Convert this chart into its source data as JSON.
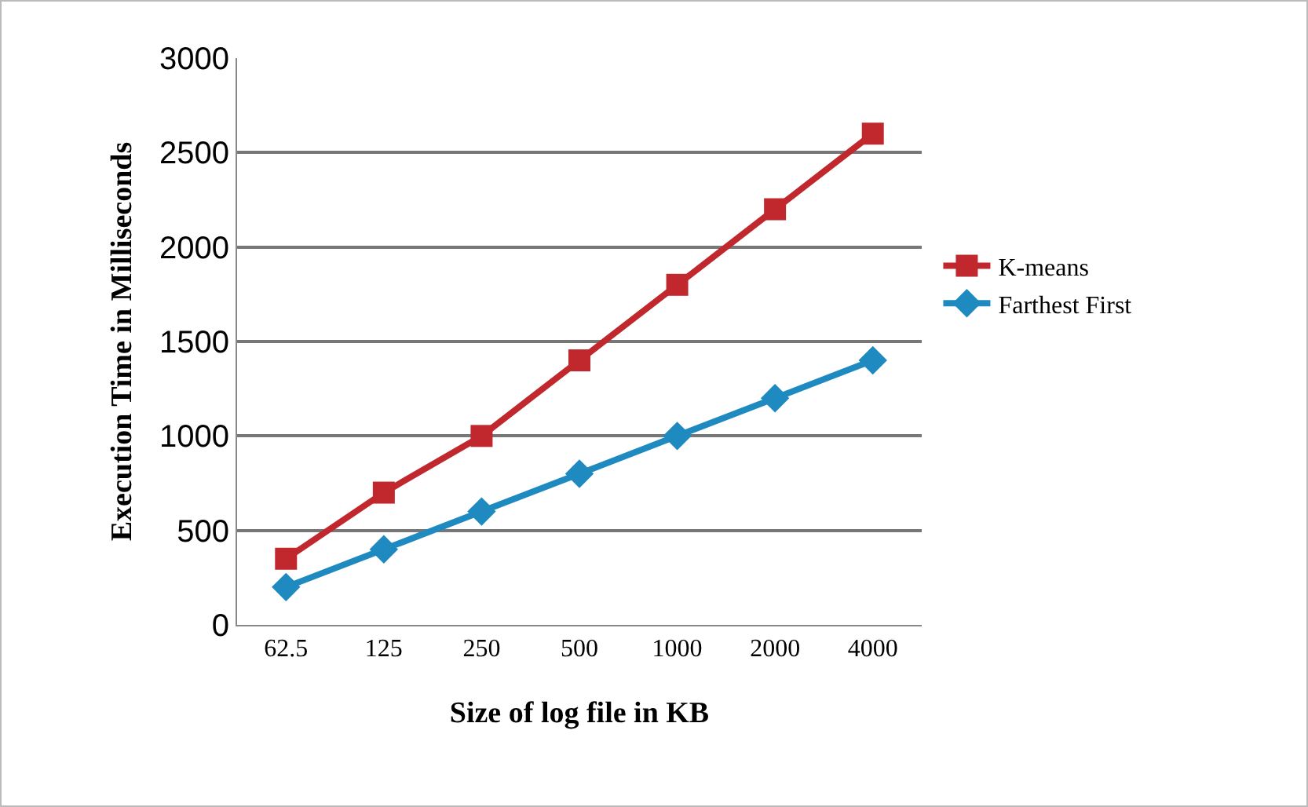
{
  "chart_data": {
    "type": "line",
    "xlabel": "Size of log file in KB",
    "ylabel": "Execution Time in Milliseconds",
    "categories": [
      "62.5",
      "125",
      "250",
      "500",
      "1000",
      "2000",
      "4000"
    ],
    "series": [
      {
        "name": "K-means",
        "color": "#c0282d",
        "marker": "square",
        "values": [
          350,
          700,
          1000,
          1400,
          1800,
          2200,
          2600
        ]
      },
      {
        "name": "Farthest First",
        "color": "#1f8ac0",
        "marker": "diamond",
        "values": [
          200,
          400,
          600,
          800,
          1000,
          1200,
          1400
        ]
      }
    ],
    "ylim": [
      0,
      3000
    ],
    "yticks": [
      0,
      500,
      1000,
      1500,
      2000,
      2500,
      3000
    ],
    "grid": "y",
    "legend": "right",
    "line_style": "solid"
  }
}
